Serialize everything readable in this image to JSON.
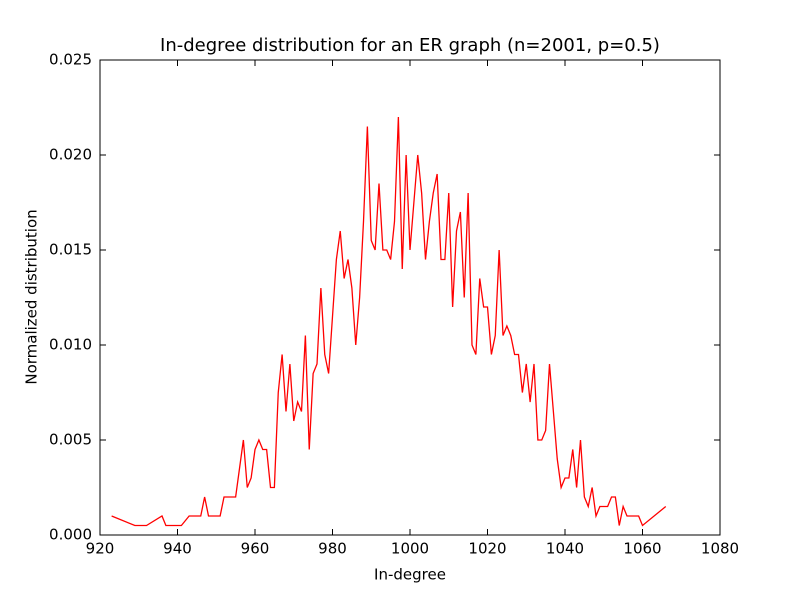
{
  "chart_data": {
    "type": "line",
    "title": "In-degree distribution for an ER graph (n=2001, p=0.5)",
    "x_label": "In-degree",
    "y_label": "Normalized distribution",
    "color": "#ff0000",
    "grid": false,
    "x": [
      923,
      929,
      932,
      936,
      937,
      941,
      943,
      946,
      947,
      948,
      951,
      952,
      955,
      956,
      957,
      958,
      959,
      960,
      961,
      962,
      963,
      964,
      965,
      966,
      967,
      968,
      969,
      970,
      971,
      972,
      973,
      974,
      975,
      976,
      977,
      978,
      979,
      980,
      981,
      982,
      983,
      984,
      985,
      986,
      987,
      988,
      989,
      990,
      991,
      992,
      993,
      994,
      995,
      996,
      997,
      998,
      999,
      1000,
      1001,
      1002,
      1003,
      1004,
      1005,
      1006,
      1007,
      1008,
      1009,
      1010,
      1011,
      1012,
      1013,
      1014,
      1015,
      1016,
      1017,
      1018,
      1019,
      1020,
      1021,
      1022,
      1023,
      1024,
      1025,
      1026,
      1027,
      1028,
      1029,
      1030,
      1031,
      1032,
      1033,
      1034,
      1035,
      1036,
      1037,
      1038,
      1039,
      1040,
      1041,
      1042,
      1043,
      1044,
      1045,
      1046,
      1047,
      1048,
      1049,
      1051,
      1052,
      1053,
      1054,
      1055,
      1056,
      1059,
      1060,
      1066
    ],
    "values": [
      0.001,
      0.0005,
      0.0005,
      0.001,
      0.0005,
      0.0005,
      0.001,
      0.001,
      0.002,
      0.001,
      0.001,
      0.002,
      0.002,
      0.0035,
      0.005,
      0.0025,
      0.003,
      0.0045,
      0.005,
      0.0045,
      0.0045,
      0.0025,
      0.0025,
      0.0075,
      0.0095,
      0.0065,
      0.009,
      0.006,
      0.007,
      0.0065,
      0.0105,
      0.0045,
      0.0085,
      0.009,
      0.013,
      0.0095,
      0.0085,
      0.0115,
      0.0145,
      0.016,
      0.0135,
      0.0145,
      0.013,
      0.01,
      0.0125,
      0.0165,
      0.0215,
      0.0155,
      0.015,
      0.0185,
      0.015,
      0.015,
      0.0145,
      0.0165,
      0.022,
      0.014,
      0.02,
      0.015,
      0.0175,
      0.02,
      0.018,
      0.0145,
      0.0165,
      0.018,
      0.019,
      0.0145,
      0.0145,
      0.018,
      0.012,
      0.016,
      0.017,
      0.0125,
      0.018,
      0.01,
      0.0095,
      0.0135,
      0.012,
      0.012,
      0.0095,
      0.0105,
      0.015,
      0.0105,
      0.011,
      0.0105,
      0.0095,
      0.0095,
      0.0075,
      0.009,
      0.007,
      0.009,
      0.005,
      0.005,
      0.0055,
      0.009,
      0.0065,
      0.004,
      0.0025,
      0.003,
      0.003,
      0.0045,
      0.0025,
      0.005,
      0.002,
      0.0015,
      0.0025,
      0.001,
      0.0015,
      0.0015,
      0.002,
      0.002,
      0.0005,
      0.0015,
      0.001,
      0.001,
      0.0005,
      0.0015
    ],
    "xlim": [
      920,
      1080
    ],
    "xticks": [
      920,
      940,
      960,
      980,
      1000,
      1020,
      1040,
      1060,
      1080
    ],
    "ylim": [
      0,
      0.025
    ],
    "yticks": [
      {
        "value": 0,
        "label": "0.000"
      },
      {
        "value": 0.005,
        "label": "0.005"
      },
      {
        "value": 0.01,
        "label": "0.010"
      },
      {
        "value": 0.015,
        "label": "0.015"
      },
      {
        "value": 0.02,
        "label": "0.020"
      },
      {
        "value": 0.025,
        "label": "0.025"
      }
    ]
  }
}
